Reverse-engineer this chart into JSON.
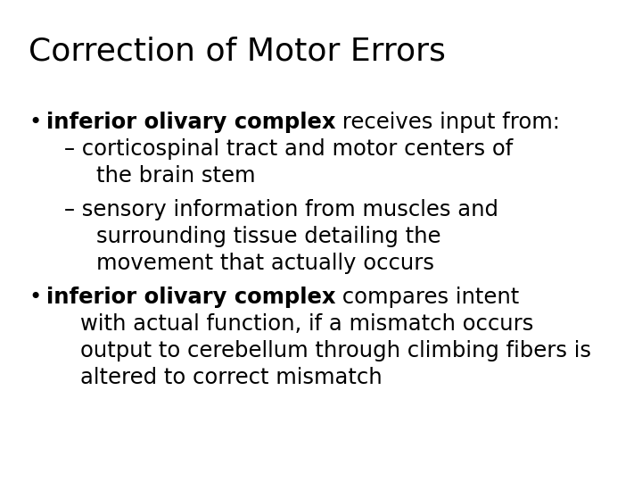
{
  "title": "Correction of Motor Errors",
  "background_color": "#ffffff",
  "text_color": "#000000",
  "content_lines": [
    {
      "type": "bullet1_bold",
      "text": "inferior olivary complex",
      "suffix": " receives input from:"
    },
    {
      "type": "sub1a",
      "text": "– corticospinal tract and motor centers of"
    },
    {
      "type": "sub1a_cont",
      "text": "   the brain stem"
    },
    {
      "type": "sub1b",
      "text": "– sensory information from muscles and"
    },
    {
      "type": "sub1b_cont",
      "text": "   surrounding tissue detailing the"
    },
    {
      "type": "sub1b_cont2",
      "text": "   movement that actually occurs"
    },
    {
      "type": "bullet2_bold",
      "text": "inferior olivary complex",
      "suffix": " compares intent"
    },
    {
      "type": "bullet2_cont",
      "text": "with actual function, if a mismatch occurs"
    },
    {
      "type": "bullet2_cont",
      "text": "output to cerebellum through climbing fibers is"
    },
    {
      "type": "bullet2_cont",
      "text": "altered to correct mismatch"
    }
  ]
}
